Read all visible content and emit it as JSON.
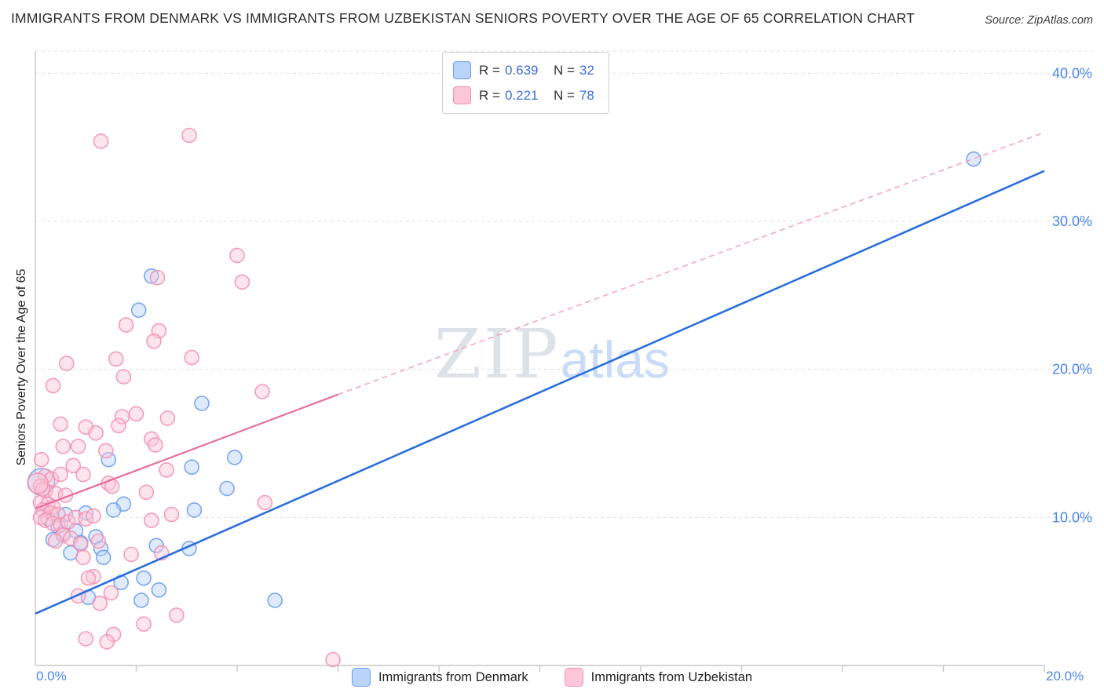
{
  "header": {
    "title": "IMMIGRANTS FROM DENMARK VS IMMIGRANTS FROM UZBEKISTAN SENIORS POVERTY OVER THE AGE OF 65 CORRELATION CHART",
    "source": "Source: ZipAtlas.com"
  },
  "watermark": {
    "zip": "ZIP",
    "atlas": "atlas"
  },
  "axes": {
    "y_label": "Seniors Poverty Over the Age of 65",
    "x_min_label": "0.0%",
    "x_max_label": "20.0%"
  },
  "stats_legend": {
    "rows": [
      {
        "series": "denmark",
        "r_label": "R =",
        "r_value": "0.639",
        "n_label": "N =",
        "n_value": "32"
      },
      {
        "series": "uzbekistan",
        "r_label": "R =",
        "r_value": "0.221",
        "n_label": "N =",
        "n_value": "78"
      }
    ]
  },
  "bottom_legend": [
    {
      "series": "denmark",
      "label": "Immigrants from Denmark"
    },
    {
      "series": "uzbekistan",
      "label": "Immigrants from Uzbekistan"
    }
  ],
  "colors": {
    "denmark_stroke": "#6d9eeb",
    "denmark_fill": "#b9d3fb",
    "uzbekistan_stroke": "#f491b2",
    "uzbekistan_fill": "#fbc6d8",
    "denmark_trend": "#2a6fdb",
    "uzbekistan_trend": "#e56b9b",
    "uzbekistan_trend_dashed": "#f2a7c0",
    "tick_label": "#4a86e8",
    "grid": "#e0e0e0",
    "axis": "#c8c8c8"
  },
  "chart_data": {
    "type": "scatter",
    "title": "Immigrants from Denmark vs Immigrants from Uzbekistan Seniors Poverty Over the Age of 65",
    "xlabel": "",
    "ylabel": "Seniors Poverty Over the Age of 65",
    "x_range": [
      0,
      20
    ],
    "y_range": [
      0,
      41.5
    ],
    "x_ticks": [
      2,
      4,
      6,
      8,
      10,
      12,
      14,
      16,
      18,
      20
    ],
    "grid": "horizontal-dashed",
    "legend_position": "bottom",
    "y_gridlines": [
      {
        "value": 40,
        "label": "40.0%"
      },
      {
        "value": 30,
        "label": "30.0%"
      },
      {
        "value": 20,
        "label": "20.0%"
      },
      {
        "value": 10,
        "label": "10.0%"
      }
    ],
    "series": [
      {
        "name": "Immigrants from Denmark",
        "R": 0.639,
        "N": 32,
        "stroke": "#6d9eeb",
        "fill": "#b9d3fb",
        "points": [
          [
            18.6,
            34.2
          ],
          [
            2.3,
            26.3
          ],
          [
            2.05,
            24.0
          ],
          [
            3.3,
            17.7
          ],
          [
            3.95,
            14.05
          ],
          [
            1.45,
            13.9
          ],
          [
            3.8,
            11.95
          ],
          [
            3.1,
            13.4
          ],
          [
            1.75,
            10.9
          ],
          [
            1.55,
            10.5
          ],
          [
            1.0,
            10.3
          ],
          [
            0.6,
            10.2
          ],
          [
            0.25,
            9.9
          ],
          [
            0.45,
            9.4
          ],
          [
            0.8,
            9.1
          ],
          [
            1.2,
            8.7
          ],
          [
            0.35,
            8.5
          ],
          [
            0.12,
            12.4,
            17
          ],
          [
            3.15,
            10.5
          ],
          [
            0.55,
            8.9
          ],
          [
            0.9,
            8.3
          ],
          [
            1.3,
            7.9
          ],
          [
            0.7,
            7.6
          ],
          [
            1.35,
            7.3
          ],
          [
            2.15,
            5.9
          ],
          [
            1.7,
            5.6
          ],
          [
            2.45,
            5.1
          ],
          [
            1.05,
            4.6
          ],
          [
            2.1,
            4.4
          ],
          [
            4.75,
            4.4
          ],
          [
            3.05,
            7.9
          ],
          [
            2.4,
            8.1
          ]
        ]
      },
      {
        "name": "Immigrants from Uzbekistan",
        "R": 0.221,
        "N": 78,
        "stroke": "#f491b2",
        "fill": "#fbc6d8",
        "points": [
          [
            1.3,
            35.4
          ],
          [
            3.05,
            35.8
          ],
          [
            4.0,
            27.7
          ],
          [
            4.1,
            25.9
          ],
          [
            2.42,
            26.2
          ],
          [
            1.8,
            23.0
          ],
          [
            2.45,
            22.6
          ],
          [
            2.35,
            21.9
          ],
          [
            1.6,
            20.7
          ],
          [
            0.62,
            20.4
          ],
          [
            3.1,
            20.8
          ],
          [
            1.75,
            19.5
          ],
          [
            0.35,
            18.9
          ],
          [
            4.5,
            18.5
          ],
          [
            2.0,
            17.0
          ],
          [
            1.72,
            16.8
          ],
          [
            1.65,
            16.2
          ],
          [
            0.5,
            16.3
          ],
          [
            1.0,
            16.1
          ],
          [
            1.2,
            15.7
          ],
          [
            0.55,
            14.8
          ],
          [
            0.85,
            14.8
          ],
          [
            1.4,
            14.5
          ],
          [
            2.3,
            15.3
          ],
          [
            2.38,
            14.9
          ],
          [
            0.12,
            13.9
          ],
          [
            0.75,
            13.5
          ],
          [
            0.2,
            12.8
          ],
          [
            0.32,
            12.6
          ],
          [
            0.5,
            12.9
          ],
          [
            0.95,
            12.9
          ],
          [
            1.45,
            12.3
          ],
          [
            1.52,
            12.1
          ],
          [
            0.1,
            12.1
          ],
          [
            0.2,
            11.8
          ],
          [
            0.4,
            11.6
          ],
          [
            0.6,
            11.5
          ],
          [
            2.2,
            11.7
          ],
          [
            2.6,
            13.2
          ],
          [
            0.1,
            11.0
          ],
          [
            0.25,
            10.9
          ],
          [
            0.35,
            10.7
          ],
          [
            0.15,
            10.5
          ],
          [
            0.3,
            10.3
          ],
          [
            0.45,
            10.2
          ],
          [
            0.1,
            10.0
          ],
          [
            0.2,
            9.8
          ],
          [
            0.35,
            9.6
          ],
          [
            0.5,
            9.5
          ],
          [
            0.65,
            9.7
          ],
          [
            0.8,
            10.0
          ],
          [
            1.0,
            9.9
          ],
          [
            1.15,
            10.1
          ],
          [
            2.3,
            9.8
          ],
          [
            2.7,
            10.2
          ],
          [
            0.55,
            8.8
          ],
          [
            0.7,
            8.6
          ],
          [
            0.4,
            8.4
          ],
          [
            0.9,
            8.2
          ],
          [
            1.25,
            8.4
          ],
          [
            1.9,
            7.5
          ],
          [
            0.95,
            7.3
          ],
          [
            2.5,
            7.6
          ],
          [
            1.15,
            6.0
          ],
          [
            0.85,
            4.7
          ],
          [
            1.5,
            4.9
          ],
          [
            1.28,
            4.2
          ],
          [
            2.15,
            2.8
          ],
          [
            1.0,
            1.8
          ],
          [
            1.55,
            2.1
          ],
          [
            1.42,
            1.6
          ],
          [
            2.8,
            3.4
          ],
          [
            5.9,
            0.4
          ],
          [
            4.55,
            11.0
          ],
          [
            2.62,
            16.7
          ],
          [
            1.05,
            5.9
          ],
          [
            0.15,
            11.9
          ],
          [
            0.05,
            12.3,
            13
          ]
        ]
      }
    ],
    "trend_lines": [
      {
        "name": "denmark-fit",
        "color": "#2a6fdb",
        "width": 2.6,
        "dash": "",
        "x1": 0,
        "y1": 3.5,
        "x2": 20,
        "y2": 33.4
      },
      {
        "name": "uzbekistan-fit",
        "color": "#e56b9b",
        "width": 2.2,
        "dash": "",
        "x1": 0,
        "y1": 10.6,
        "x2": 6,
        "y2": 18.3
      },
      {
        "name": "uzbekistan-fit-extrapolated",
        "color": "#f2a7c0",
        "width": 1.6,
        "dash": "7,5",
        "x1": 6,
        "y1": 18.3,
        "x2": 20,
        "y2": 36.0
      }
    ]
  }
}
